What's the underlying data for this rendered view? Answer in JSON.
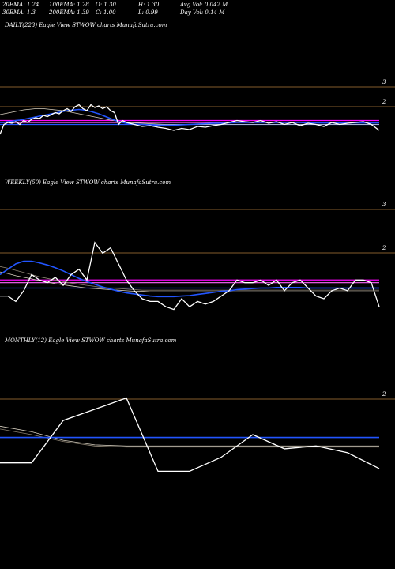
{
  "header": {
    "ema20": "20EMA: 1.24",
    "ema100": "100EMA: 1.28",
    "open": "O: 1.30",
    "high": "H: 1.30",
    "avg_vol": "Avg Vol: 0.042  M",
    "ema30": "30EMA: 1.3",
    "ema200": "200EMA: 1.39",
    "close": "C: 1.00",
    "low": "L: 0.99",
    "day_vol": "Day Vol: 0.14  M"
  },
  "colors": {
    "background": "#000000",
    "price": "#ffffff",
    "ema_blue": "#2255ff",
    "ema_magenta": "#ff00ff",
    "grid": "#b07a3a"
  },
  "chart_data": [
    {
      "type": "line",
      "title": "DAILY(223) Eagle  View  STWOW charts MunafaSutra.com",
      "ticks": [
        "3",
        "2"
      ],
      "x": [
        0,
        5,
        10,
        15,
        20,
        25,
        30,
        35,
        40,
        45,
        50,
        55,
        60,
        65,
        70,
        75,
        80,
        85,
        90,
        95,
        100,
        105,
        110,
        115,
        120,
        125,
        130,
        135,
        140,
        145,
        150,
        155,
        160,
        170,
        180,
        190,
        200,
        210,
        220,
        230,
        240,
        250,
        260,
        270,
        280,
        290,
        300,
        310,
        320,
        330,
        340,
        350,
        360,
        370,
        380,
        390,
        400,
        410,
        420,
        430,
        440,
        450,
        460,
        470,
        480
      ],
      "series": [
        {
          "role": "price",
          "values": [
            1.2,
            1.45,
            1.5,
            1.48,
            1.52,
            1.45,
            1.55,
            1.5,
            1.58,
            1.62,
            1.6,
            1.68,
            1.65,
            1.7,
            1.75,
            1.72,
            1.8,
            1.85,
            1.78,
            1.9,
            1.95,
            1.85,
            1.8,
            1.95,
            1.88,
            1.92,
            1.85,
            1.9,
            1.8,
            1.75,
            1.45,
            1.55,
            1.5,
            1.45,
            1.4,
            1.42,
            1.38,
            1.35,
            1.3,
            1.35,
            1.32,
            1.4,
            1.38,
            1.42,
            1.45,
            1.5,
            1.55,
            1.52,
            1.5,
            1.55,
            1.48,
            1.52,
            1.45,
            1.5,
            1.42,
            1.48,
            1.45,
            1.4,
            1.5,
            1.45,
            1.48,
            1.5,
            1.52,
            1.45,
            1.3
          ]
        },
        {
          "role": "ema_blue",
          "values": [
            1.5,
            1.5,
            1.52,
            1.53,
            1.55,
            1.56,
            1.58,
            1.6,
            1.62,
            1.64,
            1.66,
            1.68,
            1.7,
            1.72,
            1.74,
            1.76,
            1.78,
            1.8,
            1.81,
            1.82,
            1.83,
            1.82,
            1.8,
            1.78,
            1.75,
            1.72,
            1.68,
            1.64,
            1.6,
            1.56,
            1.52,
            1.5,
            1.48,
            1.46,
            1.45,
            1.44,
            1.43,
            1.43,
            1.43,
            1.44,
            1.45,
            1.46,
            1.47,
            1.48,
            1.48,
            1.49,
            1.5,
            1.5,
            1.5,
            1.5,
            1.5,
            1.5,
            1.5,
            1.5,
            1.5,
            1.49,
            1.49,
            1.49,
            1.49,
            1.49,
            1.49,
            1.49,
            1.49,
            1.49,
            1.49
          ]
        },
        {
          "role": "ema_slow",
          "values": [
            1.7,
            1.72,
            1.74,
            1.76,
            1.78,
            1.8,
            1.82,
            1.83,
            1.84,
            1.85,
            1.85,
            1.85,
            1.84,
            1.83,
            1.82,
            1.81,
            1.8,
            1.78,
            1.76,
            1.74,
            1.72,
            1.7,
            1.68,
            1.66,
            1.64,
            1.62,
            1.6,
            1.58,
            1.56,
            1.55,
            1.53,
            1.52,
            1.5,
            1.49,
            1.48,
            1.47,
            1.46,
            1.45,
            1.45,
            1.45,
            1.45,
            1.45,
            1.45,
            1.45,
            1.45,
            1.45,
            1.45,
            1.45,
            1.45,
            1.45,
            1.45,
            1.45,
            1.45,
            1.45,
            1.45,
            1.45,
            1.45,
            1.45,
            1.45,
            1.45,
            1.45,
            1.45,
            1.45,
            1.45,
            1.45
          ]
        }
      ],
      "reference_levels": [
        1.55,
        1.5,
        1.45
      ]
    },
    {
      "type": "line",
      "title": "WEEKLY(50) Eagle  View  STWOW charts MunafaSutra.com",
      "ticks": [
        "3",
        "2"
      ],
      "x": [
        0,
        10,
        20,
        30,
        40,
        50,
        60,
        70,
        80,
        90,
        100,
        110,
        120,
        130,
        140,
        150,
        160,
        170,
        180,
        190,
        200,
        210,
        220,
        230,
        240,
        250,
        260,
        270,
        280,
        290,
        300,
        310,
        320,
        330,
        340,
        350,
        360,
        370,
        380,
        390,
        400,
        410,
        420,
        430,
        440,
        450,
        460,
        470,
        480
      ],
      "series": [
        {
          "role": "price",
          "values": [
            1.2,
            1.2,
            1.1,
            1.3,
            1.6,
            1.5,
            1.45,
            1.55,
            1.4,
            1.6,
            1.7,
            1.5,
            2.2,
            2.0,
            2.1,
            1.8,
            1.5,
            1.3,
            1.15,
            1.1,
            1.1,
            1.0,
            0.95,
            1.15,
            1.0,
            1.1,
            1.05,
            1.1,
            1.2,
            1.3,
            1.5,
            1.45,
            1.45,
            1.5,
            1.4,
            1.5,
            1.3,
            1.45,
            1.5,
            1.35,
            1.2,
            1.15,
            1.3,
            1.35,
            1.3,
            1.5,
            1.5,
            1.45,
            1.0
          ]
        },
        {
          "role": "ema_blue",
          "values": [
            1.6,
            1.7,
            1.8,
            1.85,
            1.85,
            1.82,
            1.78,
            1.73,
            1.67,
            1.6,
            1.53,
            1.47,
            1.42,
            1.37,
            1.33,
            1.29,
            1.26,
            1.24,
            1.22,
            1.2,
            1.19,
            1.19,
            1.19,
            1.2,
            1.21,
            1.23,
            1.25,
            1.27,
            1.29,
            1.3,
            1.32,
            1.33,
            1.34,
            1.35,
            1.35,
            1.36,
            1.36,
            1.36,
            1.36,
            1.35,
            1.35,
            1.35,
            1.35,
            1.35,
            1.35,
            1.35,
            1.35,
            1.35,
            1.35
          ]
        },
        {
          "role": "ema_slow",
          "values": [
            1.65,
            1.62,
            1.58,
            1.55,
            1.52,
            1.49,
            1.46,
            1.43,
            1.41,
            1.39,
            1.37,
            1.35,
            1.34,
            1.33,
            1.32,
            1.31,
            1.3,
            1.29,
            1.29,
            1.28,
            1.28,
            1.28,
            1.28,
            1.28,
            1.28,
            1.28,
            1.28,
            1.28,
            1.28,
            1.28,
            1.28,
            1.28,
            1.28,
            1.28,
            1.28,
            1.28,
            1.28,
            1.28,
            1.28,
            1.28,
            1.28,
            1.28,
            1.28,
            1.28,
            1.28,
            1.28,
            1.28,
            1.28,
            1.28
          ]
        },
        {
          "role": "ema_slow2",
          "values": [
            1.75,
            1.72,
            1.68,
            1.64,
            1.6,
            1.56,
            1.53,
            1.5,
            1.47,
            1.44,
            1.42,
            1.4,
            1.38,
            1.36,
            1.35,
            1.34,
            1.33,
            1.32,
            1.31,
            1.31,
            1.31,
            1.31,
            1.31,
            1.31,
            1.31,
            1.31,
            1.31,
            1.31,
            1.31,
            1.31,
            1.31,
            1.31,
            1.31,
            1.31,
            1.31,
            1.31,
            1.31,
            1.31,
            1.31,
            1.31,
            1.31,
            1.31,
            1.31,
            1.31,
            1.31,
            1.31,
            1.31,
            1.31,
            1.31
          ]
        }
      ],
      "reference_levels": [
        1.5,
        1.45,
        1.35
      ]
    },
    {
      "type": "line",
      "title": "MONTHLY(12) Eagle  View  STWOW charts MunafaSutra.com",
      "ticks": [
        "2"
      ],
      "x": [
        0,
        1,
        2,
        3,
        4,
        5,
        6,
        7,
        8,
        9,
        10,
        11,
        12
      ],
      "series": [
        {
          "role": "price",
          "values": [
            0.8,
            0.8,
            1.55,
            1.75,
            1.95,
            0.65,
            0.65,
            0.9,
            1.3,
            1.05,
            1.1,
            0.98,
            0.7
          ]
        },
        {
          "role": "ema_blue",
          "values": [
            1.25,
            1.25,
            1.25,
            1.25,
            1.25,
            1.25,
            1.25,
            1.25,
            1.25,
            1.25,
            1.25,
            1.25,
            1.25
          ]
        },
        {
          "role": "ema_slow",
          "values": [
            1.45,
            1.35,
            1.2,
            1.12,
            1.1,
            1.1,
            1.1,
            1.1,
            1.1,
            1.1,
            1.1,
            1.1,
            1.1
          ]
        },
        {
          "role": "ema_slow2",
          "values": [
            1.4,
            1.3,
            1.18,
            1.1,
            1.08,
            1.08,
            1.08,
            1.08,
            1.08,
            1.08,
            1.08,
            1.08,
            1.08
          ]
        }
      ],
      "reference_levels": []
    }
  ]
}
